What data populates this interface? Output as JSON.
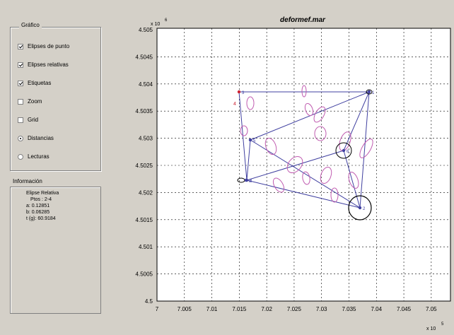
{
  "graficos": {
    "title": "Gráfico",
    "options": [
      {
        "label": "Elipses de punto",
        "kind": "check",
        "checked": true
      },
      {
        "label": "Elipses relativas",
        "kind": "check",
        "checked": true
      },
      {
        "label": "Etiquetas",
        "kind": "check",
        "checked": true
      },
      {
        "label": "Zoom",
        "kind": "check",
        "checked": false
      },
      {
        "label": "Grid",
        "kind": "check",
        "checked": false
      },
      {
        "label": "Distancias",
        "kind": "radio",
        "checked": true
      },
      {
        "label": "Lecturas",
        "kind": "radio",
        "checked": false
      }
    ]
  },
  "informacion": {
    "title": "Información",
    "lines": [
      "Elipse Relativa",
      "Ptos : 2-4",
      "a: 0.12851",
      "b: 0.06285",
      "t (g): 60.9184"
    ]
  },
  "plot": {
    "title": "deformef.mar",
    "y_exponent": "x 10",
    "y_exponent_power": "6",
    "x_exponent": "x 10",
    "x_exponent_power": "5",
    "y_ticks": [
      "4.505",
      "4.5045",
      "4.504",
      "4.5035",
      "4.503",
      "4.5025",
      "4.502",
      "4.5015",
      "4.501",
      "4.5005",
      "4.5"
    ],
    "x_ticks": [
      "7",
      "7.005",
      "7.01",
      "7.015",
      "7.02",
      "7.025",
      "7.03",
      "7.035",
      "7.04",
      "7.045",
      "7.05"
    ],
    "point_labels": [
      "1",
      "2",
      "3",
      "4",
      "5",
      "6",
      "8"
    ],
    "stray_label": "4",
    "colors": {
      "network": "#4040a0",
      "relative_ellipse": "#c05cb0",
      "point_ellipse": "#000000",
      "selected_point": "#cc2233"
    }
  }
}
